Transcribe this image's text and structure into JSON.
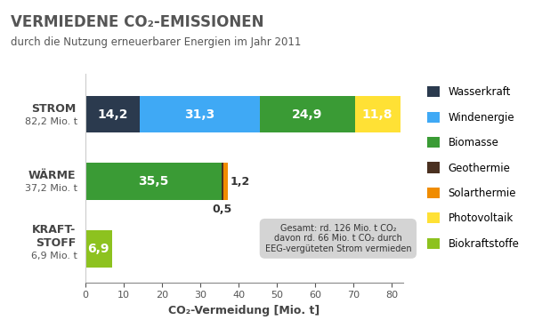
{
  "chart_data": {
    "type": "bar",
    "orientation": "horizontal",
    "stacked": true,
    "title": "VERMIEDENE CO₂-EMISSIONEN",
    "subtitle": "durch die Nutzung erneuerbarer Energien im Jahr 2011",
    "x_label": "CO₂-Vermeidung [Mio. t]",
    "categories": [
      "STROM",
      "WÄRME",
      "KRAFT-\nSTOFF"
    ],
    "total_labels": [
      "82,2 Mio. t",
      "37,2 Mio. t",
      "6,9 Mio. t"
    ],
    "series": [
      {
        "name": "Wasserkraft",
        "color": "#2b3a4e",
        "values": [
          14.2,
          null,
          null
        ],
        "value_labels": [
          "14,2",
          null,
          null
        ]
      },
      {
        "name": "Windenergie",
        "color": "#3fa9f5",
        "values": [
          31.3,
          null,
          null
        ],
        "value_labels": [
          "31,3",
          null,
          null
        ]
      },
      {
        "name": "Biomasse",
        "color": "#3a9b35",
        "values": [
          24.9,
          35.5,
          null
        ],
        "value_labels": [
          "24,9",
          "35,5",
          null
        ]
      },
      {
        "name": "Geothermie",
        "color": "#4a3020",
        "values": [
          null,
          0.5,
          null
        ],
        "value_labels": [
          null,
          "0,5",
          null
        ]
      },
      {
        "name": "Solarthermie",
        "color": "#f08c00",
        "values": [
          null,
          1.2,
          null
        ],
        "value_labels": [
          null,
          "1,2",
          null
        ]
      },
      {
        "name": "Photovoltaik",
        "color": "#ffe135",
        "values": [
          11.8,
          null,
          null
        ],
        "value_labels": [
          "11,8",
          null,
          null
        ]
      },
      {
        "name": "Biokraftstoffe",
        "color": "#8dc21f",
        "values": [
          null,
          null,
          6.9
        ],
        "value_labels": [
          null,
          null,
          "6,9"
        ]
      }
    ],
    "annotation": "Gesamt: rd. 126 Mio. t CO₂\ndavon rd. 66 Mio. t CO₂ durch\nEEG-vergüteten Strom vermieden",
    "xlim": [
      0,
      83
    ],
    "xticks": [
      0,
      10,
      20,
      30,
      40,
      50,
      60,
      70,
      80
    ],
    "data_labels": true,
    "legend": "right",
    "grid": false
  }
}
